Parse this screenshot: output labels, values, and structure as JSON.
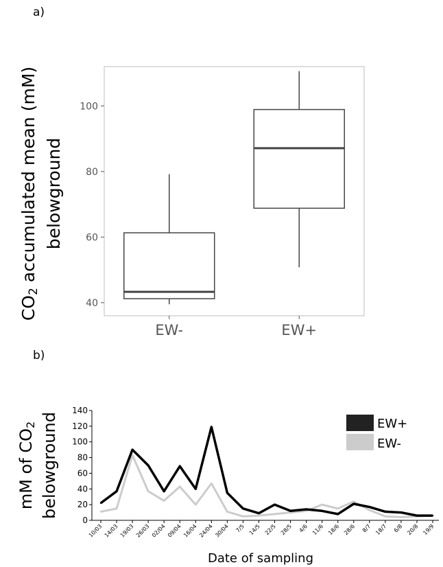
{
  "panels": {
    "a_label": "a)",
    "b_label": "b)"
  },
  "chart_data": [
    {
      "type": "box",
      "ylabel_line1_pre": "CO",
      "ylabel_line1_sub": "2",
      "ylabel_line1_post": " accumulated mean (mM)",
      "ylabel_line2": "belowground",
      "ylim": [
        36,
        112
      ],
      "yticks": [
        40,
        60,
        80,
        100
      ],
      "ytick_labels": [
        "40",
        "60",
        "80",
        "100"
      ],
      "categories": [
        "EW-",
        "EW+"
      ],
      "boxes": [
        {
          "name": "EW-",
          "whisker_low": 39.5,
          "q1": 41.2,
          "median": 43.3,
          "q3": 61.3,
          "whisker_high": 79.2
        },
        {
          "name": "EW+",
          "whisker_low": 50.8,
          "q1": 68.8,
          "median": 87.1,
          "q3": 98.9,
          "whisker_high": 110.6
        }
      ],
      "grid": false
    },
    {
      "type": "line",
      "ylabel_line1_pre": "mM of CO",
      "ylabel_line1_sub": "2",
      "ylabel_line2": "belowground",
      "xlabel": "Date of sampling",
      "ylim": [
        0,
        140
      ],
      "yticks": [
        0,
        20,
        40,
        60,
        80,
        100,
        120,
        140
      ],
      "ytick_labels": [
        "0",
        "20",
        "40",
        "60",
        "80",
        "100",
        "120",
        "140"
      ],
      "categories": [
        "10/03",
        "14/03",
        "19/03",
        "26/03",
        "02/04",
        "09/04",
        "16/04",
        "24/04",
        "30/04",
        "7/5",
        "14/5",
        "22/5",
        "28/5",
        "4/6",
        "11/6",
        "18/6",
        "28/6",
        "8/7",
        "18/7",
        "6/8",
        "20/8",
        "19/9"
      ],
      "series": [
        {
          "name": "EW+",
          "color": "#000000",
          "values": [
            22,
            37,
            90,
            70,
            37,
            69,
            40,
            119,
            35,
            15,
            9,
            20,
            12,
            14,
            12,
            8,
            21,
            17,
            11,
            10,
            6,
            6
          ]
        },
        {
          "name": "EW-",
          "color": "#cccccc",
          "values": [
            11,
            15,
            83,
            37,
            25,
            43,
            20,
            47,
            11,
            5,
            6,
            8,
            10,
            12,
            20,
            15,
            24,
            13,
            5,
            4,
            5,
            6
          ]
        }
      ],
      "legend_position": "top-right",
      "grid": false
    }
  ]
}
